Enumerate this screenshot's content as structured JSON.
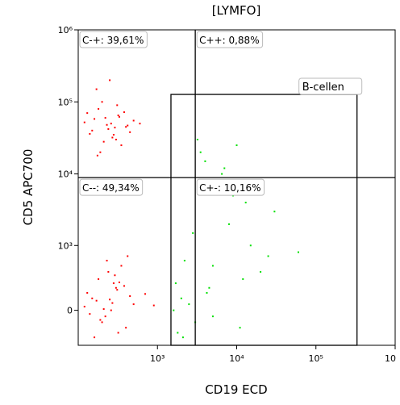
{
  "chart_data": {
    "type": "scatter",
    "title": "[LYMFO]",
    "x_label": "CD19 ECD",
    "y_label": "CD5 APC700",
    "xscale": "log",
    "yscale": "biexponential",
    "xlim": [
      100,
      1000000
    ],
    "ylim": [
      -350,
      1000000
    ],
    "xticks": [
      {
        "value": 1000,
        "label": "10³"
      },
      {
        "value": 10000,
        "label": "10⁴"
      },
      {
        "value": 100000,
        "label": "10⁵"
      },
      {
        "value": 1000000,
        "label": "10"
      }
    ],
    "yticks": [
      0,
      {
        "value": 1000,
        "label": "10³"
      },
      {
        "value": 10000,
        "label": "10⁴"
      },
      {
        "value": 100000,
        "label": "10⁵"
      },
      {
        "value": 1000000,
        "label": "10⁶"
      }
    ],
    "quadrant": {
      "x": 3000,
      "y": 8900,
      "labels": {
        "top_left": "C-+: 39,61%",
        "top_right": "C++: 0,88%",
        "bottom_left": "C--: 49,34%",
        "bottom_right": "C+-: 10,16%"
      }
    },
    "gates": [
      {
        "label": "B-cellen",
        "x": [
          1480,
          330000
        ],
        "y": [
          -350,
          127000
        ]
      }
    ],
    "series": [
      {
        "color": "#ff0000",
        "x": [
          150,
          220,
          300,
          180,
          260,
          400,
          130,
          350,
          500,
          200,
          280,
          170,
          240,
          320,
          450,
          120,
          190,
          310,
          230,
          270,
          160,
          380,
          210,
          290,
          600,
          140,
          250,
          330,
          175,
          420
        ],
        "values": [
          40000,
          60000,
          30000,
          80000,
          50000,
          45000,
          70000,
          25000,
          55000,
          100000,
          35000,
          150000,
          42000,
          65000,
          38000,
          52000,
          20000,
          90000,
          48000,
          32000,
          58000,
          72000,
          28000,
          44000,
          50000,
          36000,
          200000,
          62000,
          18000,
          47000
        ]
      },
      {
        "color": "#ff0000",
        "x": [
          150,
          220,
          300,
          180,
          260,
          400,
          130,
          350,
          500,
          200,
          280,
          170,
          240,
          320,
          450,
          120,
          190,
          310,
          230,
          270,
          160,
          380,
          210,
          290,
          700,
          140,
          250,
          330,
          900,
          420
        ],
        "values": [
          100,
          -50,
          200,
          300,
          0,
          -150,
          150,
          500,
          50,
          -100,
          250,
          80,
          400,
          -200,
          120,
          30,
          -80,
          180,
          600,
          60,
          -250,
          220,
          10,
          350,
          140,
          -30,
          90,
          260,
          40,
          700
        ]
      },
      {
        "color": "#00e000",
        "x": [
          2000,
          3000,
          5000,
          8000,
          1800,
          12000,
          4000,
          6000,
          2500,
          15000,
          30000,
          3500,
          7000,
          10000,
          1600,
          2200,
          9000,
          20000,
          5000,
          4500,
          2800,
          11000,
          60000,
          3200,
          1700,
          6500,
          25000,
          4200,
          13000,
          2100
        ],
        "values": [
          100,
          -100,
          500,
          2000,
          -200,
          300,
          15000,
          8000,
          50,
          1000,
          3000,
          20000,
          12000,
          25000,
          0,
          600,
          5000,
          400,
          -50,
          200,
          1500,
          -150,
          800,
          30000,
          250,
          10000,
          700,
          150,
          4000,
          -250
        ]
      }
    ]
  }
}
